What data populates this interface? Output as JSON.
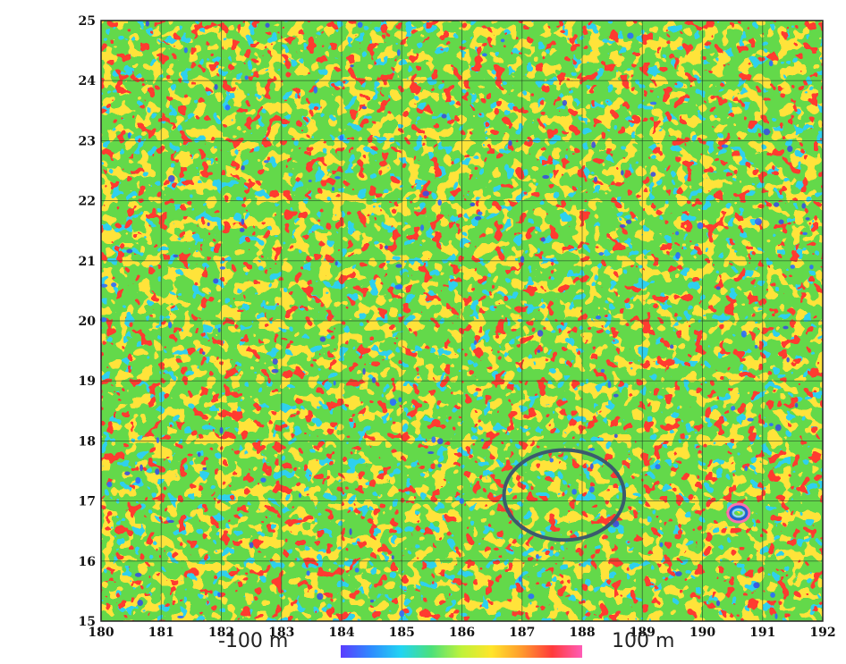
{
  "map": {
    "x_ticks": [
      "180",
      "181",
      "182",
      "183",
      "184",
      "185",
      "186",
      "187",
      "188",
      "189",
      "190",
      "191",
      "192"
    ],
    "y_ticks": [
      "15",
      "16",
      "17",
      "18",
      "19",
      "20",
      "21",
      "22",
      "23",
      "24",
      "25"
    ],
    "x_range": [
      180,
      192
    ],
    "y_range": [
      15,
      25
    ],
    "grid": true,
    "field": "green/yellow dominated noise texture with scattered red and blue anomalies",
    "circled_feature": {
      "center": [
        187.7,
        17.1
      ],
      "semi_axes": [
        1.0,
        0.75
      ],
      "color": "#3b5a6e"
    },
    "anomaly_ring": {
      "center": [
        190.6,
        16.8
      ],
      "color": "#1f5fd6"
    }
  },
  "colorbar": {
    "min_label": "-100 m",
    "max_label": "100 m",
    "colors": [
      "#5a3cff",
      "#2e8bff",
      "#22d4f2",
      "#4be07a",
      "#bff23a",
      "#ffe52b",
      "#ff9a2d",
      "#ff3b3b",
      "#ff5cb6"
    ]
  }
}
